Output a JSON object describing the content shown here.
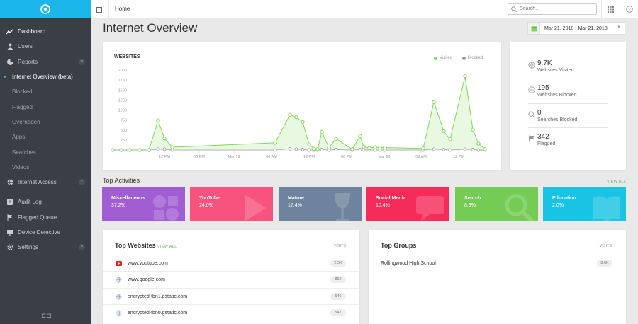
{
  "colors": {
    "accent": "#1bb7ea",
    "sidebar": "#3a3f45",
    "visited": "#7ed957",
    "blocked": "#999999"
  },
  "topbar": {
    "breadcrumb": "Home",
    "search_placeholder": "Search..."
  },
  "sidebar": {
    "items": [
      {
        "label": "Dashboard",
        "icon": "trending-icon"
      },
      {
        "label": "Users",
        "icon": "user-icon"
      },
      {
        "label": "Reports",
        "icon": "pie-chart-icon"
      }
    ],
    "report_subitems": [
      "Internet Overview (beta)",
      "Blocked",
      "Flagged",
      "Overridden",
      "Apps",
      "Searches",
      "Videos"
    ],
    "internet_access": "Internet Access",
    "bottom_items": [
      {
        "label": "Audit Log",
        "icon": "log-icon"
      },
      {
        "label": "Flagged Queue",
        "icon": "flag-icon"
      },
      {
        "label": "Device Detective",
        "icon": "monitor-icon"
      },
      {
        "label": "Settings",
        "icon": "gear-icon"
      }
    ]
  },
  "page": {
    "title": "Internet Overview",
    "date_range": "Mar 21, 2018 - Mar 21, 2018"
  },
  "chart_data": {
    "type": "line",
    "title": "WEBSITES",
    "legend": [
      "Visited",
      "Blocked"
    ],
    "yticks": [
      0,
      250,
      500,
      750,
      1000,
      1250,
      1500,
      1750,
      2000
    ],
    "ylim": [
      0,
      2000
    ],
    "xticks": [
      "12 PM",
      "06 PM",
      "Mar 19",
      "06 AM",
      "12 PM",
      "06 PM",
      "Mar 20",
      "06 AM",
      "12 PM"
    ],
    "series": [
      {
        "name": "Visited",
        "values": [
          0,
          0,
          0,
          0,
          0,
          740,
          290,
          70,
          180,
          880,
          820,
          700,
          140,
          30,
          20,
          450,
          60,
          280,
          20,
          350,
          80,
          50,
          70,
          60,
          60,
          40,
          1200,
          470,
          270,
          1850,
          510,
          160,
          20
        ]
      },
      {
        "name": "Blocked",
        "values": [
          0,
          0,
          0,
          0,
          0,
          20,
          20,
          0,
          0,
          30,
          20,
          10,
          0,
          0,
          0,
          10,
          0,
          10,
          0,
          10,
          0,
          0,
          0,
          0,
          0,
          0,
          20,
          10,
          0,
          20,
          10,
          0,
          0
        ]
      }
    ]
  },
  "stats": [
    {
      "value": "9.7K",
      "label": "Websites Visited",
      "icon": "globe-icon"
    },
    {
      "value": "195",
      "label": "Websites Blocked",
      "icon": "blocked-icon"
    },
    {
      "value": "0",
      "label": "Searches Blocked",
      "icon": "search-icon"
    },
    {
      "value": "342",
      "label": "Flagged",
      "icon": "flag-icon"
    }
  ],
  "activities": {
    "title": "Top Activities",
    "view_all": "VIEW ALL",
    "tiles": [
      {
        "name": "Miscellaneous",
        "value": "37.2%",
        "color": "#a15dd2"
      },
      {
        "name": "YouTube",
        "value": "24.0%",
        "color": "#f6547e"
      },
      {
        "name": "Mature",
        "value": "17.4%",
        "color": "#6d839e"
      },
      {
        "name": "Social Media",
        "value": "10.4%",
        "color": "#f52c59"
      },
      {
        "name": "Search",
        "value": "8.9%",
        "color": "#74cc55"
      },
      {
        "name": "Education",
        "value": "2.0%",
        "color": "#19c3e3"
      }
    ]
  },
  "top_websites": {
    "title": "Top Websites",
    "view_all": "VIEW ALL",
    "visits_label": "VISITS",
    "rows": [
      {
        "site": "www.youtube.com",
        "visits": "2.3K",
        "icon": "youtube-icon"
      },
      {
        "site": "www.google.com",
        "visits": "862",
        "icon": "globe-icon"
      },
      {
        "site": "encrypted-tbn1.gstatic.com",
        "visits": "546",
        "icon": "globe-icon"
      },
      {
        "site": "encrypted-tbn0.gstatic.com",
        "visits": "541",
        "icon": "globe-icon"
      }
    ]
  },
  "top_groups": {
    "title": "Top Groups",
    "visits_label": "VISITS",
    "rows": [
      {
        "group": "Rollingwood High School",
        "visits": "8.6K"
      }
    ]
  }
}
